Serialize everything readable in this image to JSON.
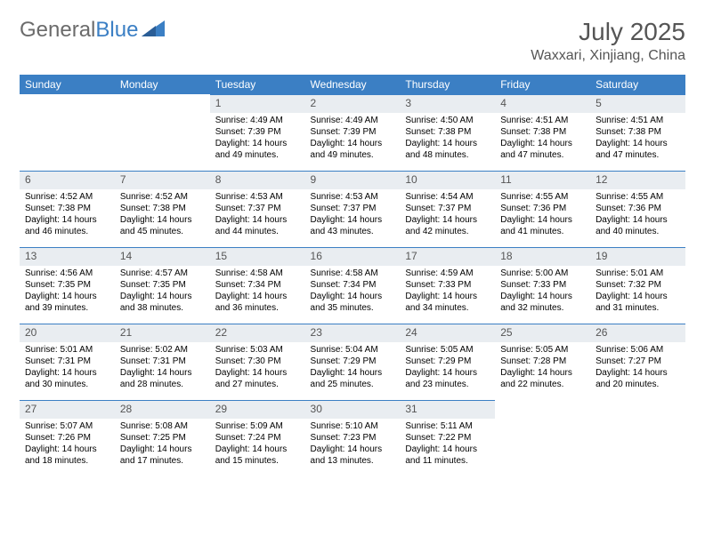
{
  "brand": {
    "part1": "General",
    "part2": "Blue"
  },
  "title": "July 2025",
  "location": "Waxxari, Xinjiang, China",
  "colors": {
    "header_bg": "#3b7fc4",
    "daynum_bg": "#e9edf1",
    "text": "#000000",
    "title_text": "#555555"
  },
  "weekdays": [
    "Sunday",
    "Monday",
    "Tuesday",
    "Wednesday",
    "Thursday",
    "Friday",
    "Saturday"
  ],
  "grid": [
    [
      null,
      null,
      {
        "n": "1",
        "sr": "4:49 AM",
        "ss": "7:39 PM",
        "dl": "14 hours and 49 minutes."
      },
      {
        "n": "2",
        "sr": "4:49 AM",
        "ss": "7:39 PM",
        "dl": "14 hours and 49 minutes."
      },
      {
        "n": "3",
        "sr": "4:50 AM",
        "ss": "7:38 PM",
        "dl": "14 hours and 48 minutes."
      },
      {
        "n": "4",
        "sr": "4:51 AM",
        "ss": "7:38 PM",
        "dl": "14 hours and 47 minutes."
      },
      {
        "n": "5",
        "sr": "4:51 AM",
        "ss": "7:38 PM",
        "dl": "14 hours and 47 minutes."
      }
    ],
    [
      {
        "n": "6",
        "sr": "4:52 AM",
        "ss": "7:38 PM",
        "dl": "14 hours and 46 minutes."
      },
      {
        "n": "7",
        "sr": "4:52 AM",
        "ss": "7:38 PM",
        "dl": "14 hours and 45 minutes."
      },
      {
        "n": "8",
        "sr": "4:53 AM",
        "ss": "7:37 PM",
        "dl": "14 hours and 44 minutes."
      },
      {
        "n": "9",
        "sr": "4:53 AM",
        "ss": "7:37 PM",
        "dl": "14 hours and 43 minutes."
      },
      {
        "n": "10",
        "sr": "4:54 AM",
        "ss": "7:37 PM",
        "dl": "14 hours and 42 minutes."
      },
      {
        "n": "11",
        "sr": "4:55 AM",
        "ss": "7:36 PM",
        "dl": "14 hours and 41 minutes."
      },
      {
        "n": "12",
        "sr": "4:55 AM",
        "ss": "7:36 PM",
        "dl": "14 hours and 40 minutes."
      }
    ],
    [
      {
        "n": "13",
        "sr": "4:56 AM",
        "ss": "7:35 PM",
        "dl": "14 hours and 39 minutes."
      },
      {
        "n": "14",
        "sr": "4:57 AM",
        "ss": "7:35 PM",
        "dl": "14 hours and 38 minutes."
      },
      {
        "n": "15",
        "sr": "4:58 AM",
        "ss": "7:34 PM",
        "dl": "14 hours and 36 minutes."
      },
      {
        "n": "16",
        "sr": "4:58 AM",
        "ss": "7:34 PM",
        "dl": "14 hours and 35 minutes."
      },
      {
        "n": "17",
        "sr": "4:59 AM",
        "ss": "7:33 PM",
        "dl": "14 hours and 34 minutes."
      },
      {
        "n": "18",
        "sr": "5:00 AM",
        "ss": "7:33 PM",
        "dl": "14 hours and 32 minutes."
      },
      {
        "n": "19",
        "sr": "5:01 AM",
        "ss": "7:32 PM",
        "dl": "14 hours and 31 minutes."
      }
    ],
    [
      {
        "n": "20",
        "sr": "5:01 AM",
        "ss": "7:31 PM",
        "dl": "14 hours and 30 minutes."
      },
      {
        "n": "21",
        "sr": "5:02 AM",
        "ss": "7:31 PM",
        "dl": "14 hours and 28 minutes."
      },
      {
        "n": "22",
        "sr": "5:03 AM",
        "ss": "7:30 PM",
        "dl": "14 hours and 27 minutes."
      },
      {
        "n": "23",
        "sr": "5:04 AM",
        "ss": "7:29 PM",
        "dl": "14 hours and 25 minutes."
      },
      {
        "n": "24",
        "sr": "5:05 AM",
        "ss": "7:29 PM",
        "dl": "14 hours and 23 minutes."
      },
      {
        "n": "25",
        "sr": "5:05 AM",
        "ss": "7:28 PM",
        "dl": "14 hours and 22 minutes."
      },
      {
        "n": "26",
        "sr": "5:06 AM",
        "ss": "7:27 PM",
        "dl": "14 hours and 20 minutes."
      }
    ],
    [
      {
        "n": "27",
        "sr": "5:07 AM",
        "ss": "7:26 PM",
        "dl": "14 hours and 18 minutes."
      },
      {
        "n": "28",
        "sr": "5:08 AM",
        "ss": "7:25 PM",
        "dl": "14 hours and 17 minutes."
      },
      {
        "n": "29",
        "sr": "5:09 AM",
        "ss": "7:24 PM",
        "dl": "14 hours and 15 minutes."
      },
      {
        "n": "30",
        "sr": "5:10 AM",
        "ss": "7:23 PM",
        "dl": "14 hours and 13 minutes."
      },
      {
        "n": "31",
        "sr": "5:11 AM",
        "ss": "7:22 PM",
        "dl": "14 hours and 11 minutes."
      },
      null,
      null
    ]
  ]
}
